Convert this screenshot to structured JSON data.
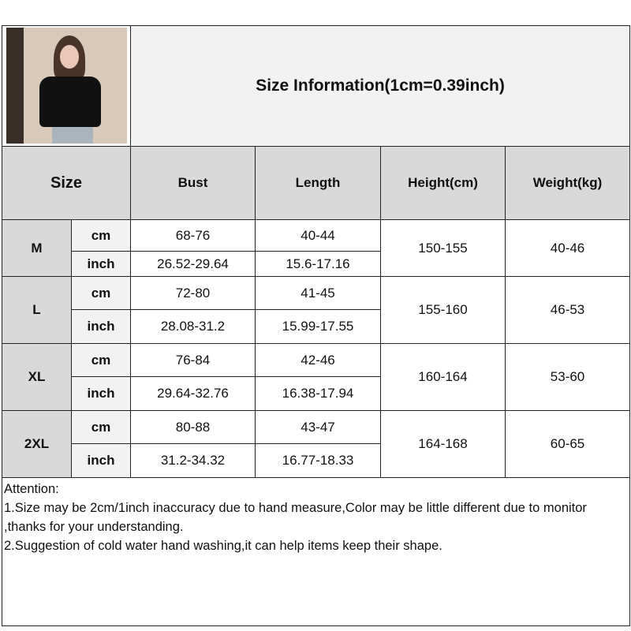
{
  "title": "Size Information(1cm=0.39inch)",
  "photo": {
    "icon": "model-photo"
  },
  "headers": [
    "Size",
    "Bust",
    "Length",
    "Height(cm)",
    "Weight(kg)"
  ],
  "rows": [
    {
      "size": "M",
      "cm_label": "cm",
      "inch_label": "inch",
      "bust_cm": "68-76",
      "length_cm": "40-44",
      "bust_inch": "26.52-29.64",
      "length_inch": "15.6-17.16",
      "height": "150-155",
      "weight": "40-46"
    },
    {
      "size": "L",
      "cm_label": "cm",
      "inch_label": "inch",
      "bust_cm": "72-80",
      "length_cm": "41-45",
      "bust_inch": "28.08-31.2",
      "length_inch": "15.99-17.55",
      "height": "155-160",
      "weight": "46-53"
    },
    {
      "size": "XL",
      "cm_label": "cm",
      "inch_label": "inch",
      "bust_cm": "76-84",
      "length_cm": "42-46",
      "bust_inch": "29.64-32.76",
      "length_inch": "16.38-17.94",
      "height": "160-164",
      "weight": "53-60"
    },
    {
      "size": "2XL",
      "cm_label": "cm",
      "inch_label": "inch",
      "bust_cm": "80-88",
      "length_cm": "43-47",
      "bust_inch": "31.2-34.32",
      "length_inch": "16.77-18.33",
      "height": "164-168",
      "weight": "60-65"
    }
  ],
  "attention": {
    "heading": "Attention:",
    "line1": "1.Size may be 2cm/1inch inaccuracy due to hand measure,Color may be little different due to monitor ,thanks for your understanding.",
    "line2": "2.Suggestion of cold water hand washing,it can help items keep their shape."
  }
}
